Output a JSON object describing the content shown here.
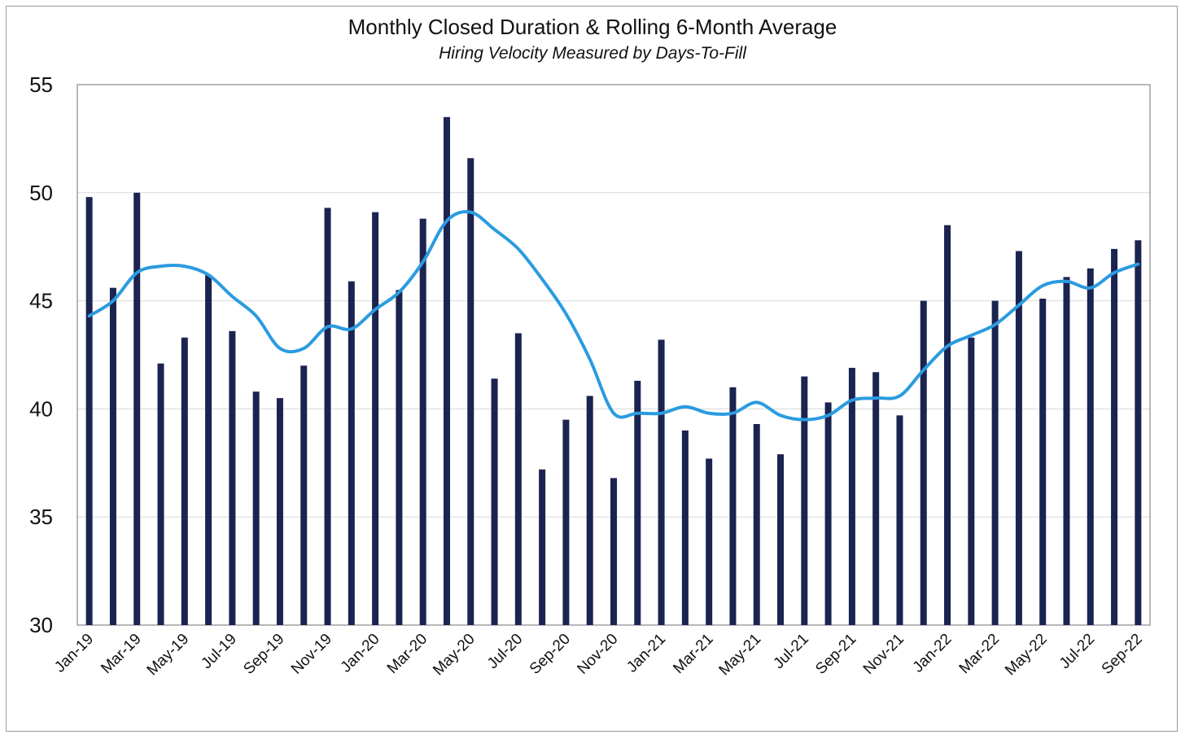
{
  "chart_data": {
    "type": "bar",
    "title": "Monthly Closed Duration & Rolling 6-Month Average",
    "subtitle": "Hiring Velocity Measured by Days-To-Fill",
    "xlabel": "",
    "ylabel": "",
    "ylim": [
      30,
      55
    ],
    "yticks": [
      30,
      35,
      40,
      45,
      50,
      55
    ],
    "grid": true,
    "categories": [
      "Jan-19",
      "Feb-19",
      "Mar-19",
      "Apr-19",
      "May-19",
      "Jun-19",
      "Jul-19",
      "Aug-19",
      "Sep-19",
      "Oct-19",
      "Nov-19",
      "Dec-19",
      "Jan-20",
      "Feb-20",
      "Mar-20",
      "Apr-20",
      "May-20",
      "Jun-20",
      "Jul-20",
      "Aug-20",
      "Sep-20",
      "Oct-20",
      "Nov-20",
      "Dec-20",
      "Jan-21",
      "Feb-21",
      "Mar-21",
      "Apr-21",
      "May-21",
      "Jun-21",
      "Jul-21",
      "Aug-21",
      "Sep-21",
      "Oct-21",
      "Nov-21",
      "Dec-21",
      "Jan-22",
      "Feb-22",
      "Mar-22",
      "Apr-22",
      "May-22",
      "Jun-22",
      "Jul-22",
      "Aug-22",
      "Sep-22"
    ],
    "xtick_labels": [
      "Jan-19",
      "Mar-19",
      "May-19",
      "Jul-19",
      "Sep-19",
      "Nov-19",
      "Jan-20",
      "Mar-20",
      "May-20",
      "Jul-20",
      "Sep-20",
      "Nov-20",
      "Jan-21",
      "Mar-21",
      "May-21",
      "Jul-21",
      "Sep-21",
      "Nov-21",
      "Jan-22",
      "Mar-22",
      "May-22",
      "Jul-22",
      "Sep-22"
    ],
    "series": [
      {
        "type": "bar",
        "color": "#1b2350",
        "values": [
          49.8,
          45.6,
          50.0,
          42.1,
          43.3,
          46.2,
          43.6,
          40.8,
          40.5,
          42.0,
          49.3,
          45.9,
          49.1,
          45.5,
          48.8,
          53.5,
          51.6,
          41.4,
          43.5,
          37.2,
          39.5,
          40.6,
          36.8,
          41.3,
          43.2,
          39.0,
          37.7,
          41.0,
          39.3,
          37.9,
          41.5,
          40.3,
          41.9,
          41.7,
          39.7,
          45.0,
          48.5,
          43.3,
          45.0,
          47.3,
          45.1,
          46.1,
          46.5,
          47.4,
          47.8
        ]
      },
      {
        "type": "line",
        "color": "#2b9be0",
        "values": [
          44.3,
          45.0,
          46.3,
          46.6,
          46.6,
          46.2,
          45.2,
          44.3,
          42.8,
          42.8,
          43.8,
          43.7,
          44.6,
          45.4,
          46.8,
          48.7,
          49.1,
          48.3,
          47.4,
          46.0,
          44.4,
          42.3,
          39.8,
          39.8,
          39.8,
          40.1,
          39.8,
          39.8,
          40.3,
          39.7,
          39.5,
          39.7,
          40.4,
          40.5,
          40.6,
          41.8,
          42.9,
          43.4,
          43.9,
          44.8,
          45.7,
          45.9,
          45.6,
          46.3,
          46.7
        ]
      }
    ]
  }
}
